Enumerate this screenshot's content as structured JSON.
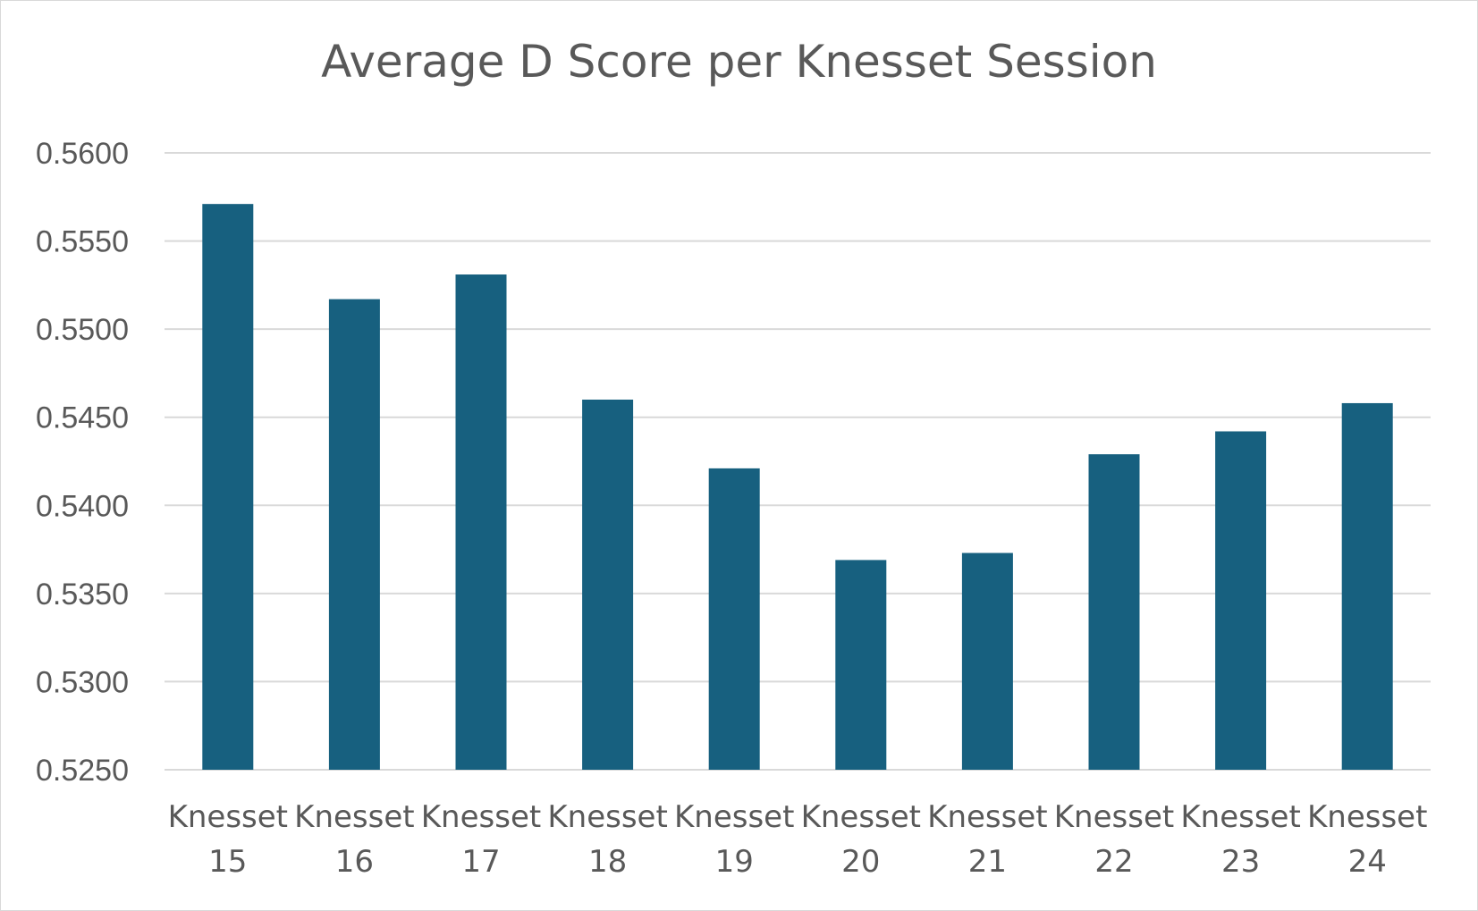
{
  "chart_data": {
    "type": "bar",
    "title": "Average D Score per Knesset Session",
    "xlabel": "",
    "ylabel": "",
    "categories": [
      [
        "Knesset",
        "15"
      ],
      [
        "Knesset",
        "16"
      ],
      [
        "Knesset",
        "17"
      ],
      [
        "Knesset",
        "18"
      ],
      [
        "Knesset",
        "19"
      ],
      [
        "Knesset",
        "20"
      ],
      [
        "Knesset",
        "21"
      ],
      [
        "Knesset",
        "22"
      ],
      [
        "Knesset",
        "23"
      ],
      [
        "Knesset",
        "24"
      ]
    ],
    "values": [
      0.5571,
      0.5517,
      0.5531,
      0.546,
      0.5421,
      0.5369,
      0.5373,
      0.5429,
      0.5442,
      0.5458
    ],
    "ylim": [
      0.525,
      0.56
    ],
    "yticks": [
      "0.5250",
      "0.5300",
      "0.5350",
      "0.5400",
      "0.5450",
      "0.5500",
      "0.5550",
      "0.5600"
    ],
    "ytick_values": [
      0.525,
      0.53,
      0.535,
      0.54,
      0.545,
      0.55,
      0.555,
      0.56
    ],
    "grid": true,
    "legend": "none",
    "colors": {
      "bar": "#17607f",
      "grid": "#d9d9d9",
      "text": "#595959"
    }
  }
}
